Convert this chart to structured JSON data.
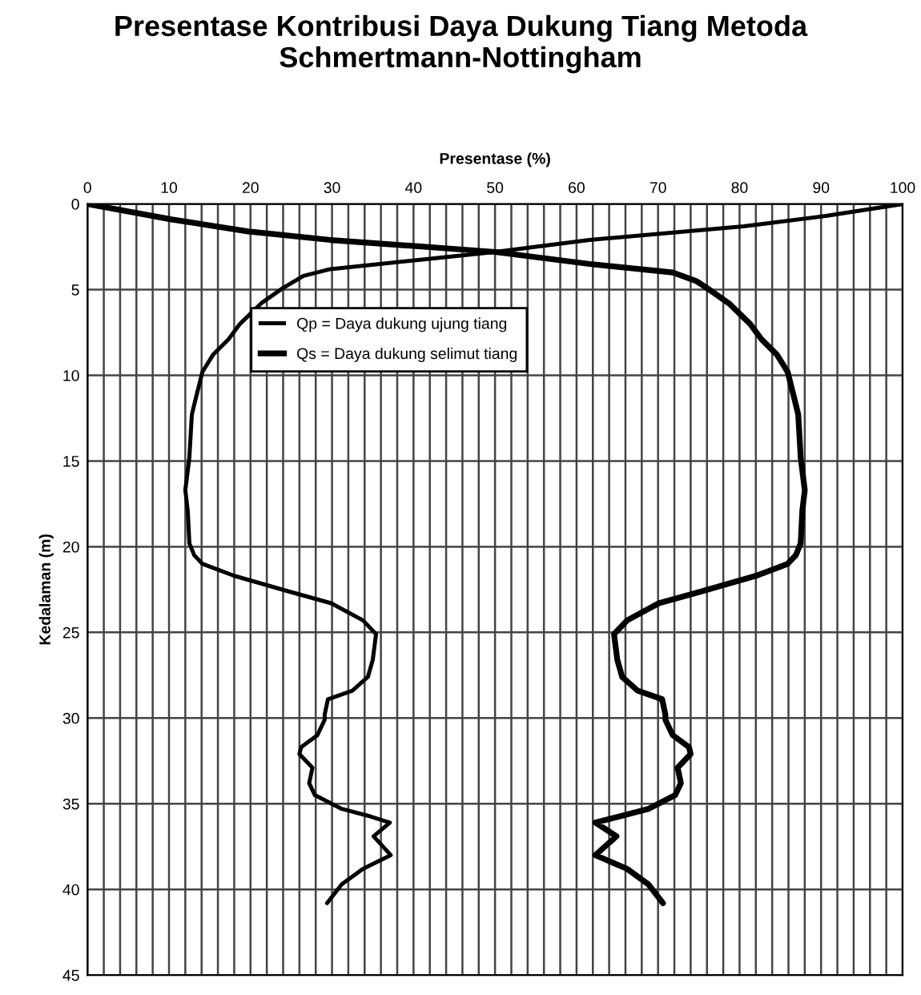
{
  "chart_data": {
    "type": "line",
    "title": "Presentase Kontribusi Daya Dukung Tiang Metoda Schmertmann-Nottingham",
    "xlabel": "Presentase (%)",
    "ylabel": "Kedalaman (m)",
    "xlim": [
      0,
      100
    ],
    "ylim": [
      45,
      0
    ],
    "xticks": [
      0,
      {
        "value": 2,
        "label": null
      },
      {
        "value": 4,
        "label": null
      },
      {
        "value": 6,
        "label": null
      },
      {
        "value": 8,
        "label": null
      },
      10,
      {
        "value": 12,
        "label": null
      },
      {
        "value": 14,
        "label": null
      },
      {
        "value": 16,
        "label": null
      },
      {
        "value": 18,
        "label": null
      },
      20,
      {
        "value": 22,
        "label": null
      },
      {
        "value": 24,
        "label": null
      },
      {
        "value": 26,
        "label": null
      },
      {
        "value": 28,
        "label": null
      },
      30,
      {
        "value": 32,
        "label": null
      },
      {
        "value": 34,
        "label": null
      },
      {
        "value": 36,
        "label": null
      },
      {
        "value": 38,
        "label": null
      },
      40,
      {
        "value": 42,
        "label": null
      },
      {
        "value": 44,
        "label": null
      },
      {
        "value": 46,
        "label": null
      },
      {
        "value": 48,
        "label": null
      },
      50,
      {
        "value": 52,
        "label": null
      },
      {
        "value": 54,
        "label": null
      },
      {
        "value": 56,
        "label": null
      },
      {
        "value": 58,
        "label": null
      },
      60,
      {
        "value": 62,
        "label": null
      },
      {
        "value": 64,
        "label": null
      },
      {
        "value": 66,
        "label": null
      },
      {
        "value": 68,
        "label": null
      },
      70,
      {
        "value": 72,
        "label": null
      },
      {
        "value": 74,
        "label": null
      },
      {
        "value": 76,
        "label": null
      },
      {
        "value": 78,
        "label": null
      },
      80,
      {
        "value": 82,
        "label": null
      },
      {
        "value": 84,
        "label": null
      },
      {
        "value": 86,
        "label": null
      },
      {
        "value": 88,
        "label": null
      },
      90,
      {
        "value": 92,
        "label": null
      },
      {
        "value": 94,
        "label": null
      },
      {
        "value": 96,
        "label": null
      },
      {
        "value": 98,
        "label": null
      },
      100
    ],
    "yticks": [
      0,
      5,
      10,
      15,
      20,
      25,
      30,
      35,
      40,
      45
    ],
    "grid": true,
    "legend": "top",
    "marker": "none",
    "line_style": "solid",
    "series": [
      {
        "name": "Qp = Daya dukung ujung tiang",
        "color": "#000000",
        "x": [
          100,
          90.6,
          80.5,
          61.6,
          50,
          39.9,
          29.8,
          26.5,
          24.0,
          21.3,
          18.7,
          17.3,
          15.4,
          14.1,
          13.1,
          12.8,
          12.5,
          12.0,
          12.3,
          12.5,
          13.1,
          14.1,
          18.0,
          24.6,
          29.9,
          33.8,
          35.4,
          35.0,
          34.4,
          32.5,
          29.5,
          29.1,
          29.1,
          28.2,
          26.2,
          26.0,
          27.6,
          27.2,
          27.9,
          31.2,
          34.4,
          37.1,
          35.1,
          37.2,
          33.8,
          31.2,
          29.4
        ],
        "values": [
          0,
          0.7,
          1.3,
          2.1,
          2.8,
          3.3,
          3.8,
          4.2,
          4.9,
          5.8,
          7.0,
          7.9,
          8.8,
          9.8,
          11.7,
          12.3,
          14.8,
          16.7,
          17.9,
          19.8,
          20.5,
          21.0,
          21.7,
          22.6,
          23.3,
          24.3,
          25.1,
          26.6,
          27.6,
          28.4,
          28.9,
          29.8,
          30.1,
          31.0,
          31.7,
          32.1,
          32.9,
          33.8,
          34.5,
          35.3,
          35.7,
          36.1,
          36.9,
          38.0,
          38.8,
          39.7,
          40.8
        ]
      },
      {
        "name": "Qs = Daya dukung selimut tiang",
        "color": "#000000",
        "x": [
          0,
          10.3,
          19.7,
          29.8,
          50,
          61.6,
          71.8,
          74.7,
          76.0,
          78.7,
          81.3,
          82.7,
          84.6,
          85.9,
          86.9,
          87.2,
          87.5,
          88.0,
          87.7,
          87.5,
          86.9,
          85.9,
          82.0,
          75.4,
          70.1,
          66.2,
          64.6,
          65.0,
          65.6,
          67.5,
          70.5,
          70.9,
          70.9,
          71.8,
          73.8,
          74.0,
          72.4,
          72.8,
          72.1,
          68.8,
          65.6,
          62.3,
          64.9,
          62.3,
          66.2,
          68.8,
          70.6
        ],
        "values": [
          0,
          0.9,
          1.6,
          2.1,
          2.8,
          3.5,
          4.0,
          4.5,
          4.9,
          5.8,
          7.0,
          7.9,
          8.8,
          9.8,
          11.7,
          12.3,
          14.8,
          16.7,
          17.9,
          19.8,
          20.5,
          21.0,
          21.7,
          22.6,
          23.3,
          24.3,
          25.1,
          26.6,
          27.6,
          28.4,
          28.9,
          29.8,
          30.1,
          31.0,
          31.7,
          32.1,
          32.9,
          33.8,
          34.5,
          35.3,
          35.7,
          36.1,
          36.9,
          38.0,
          38.8,
          39.7,
          40.8
        ]
      }
    ]
  }
}
